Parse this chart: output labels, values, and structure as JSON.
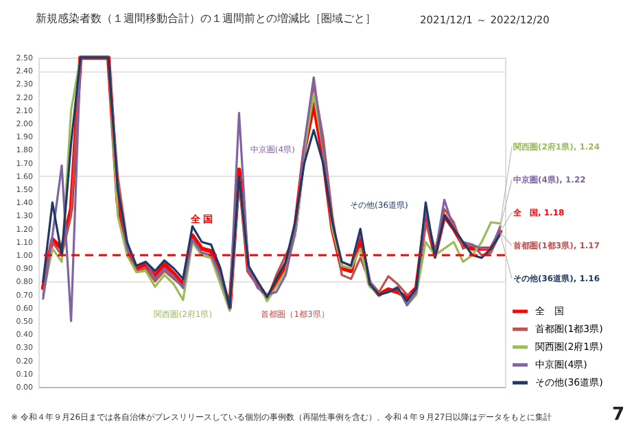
{
  "chart_data": {
    "type": "line",
    "title": "新規感染者数（１週間移動合計）の１週間前との増減比［圏域ごと］",
    "subtitle": "2021/12/1 ～ 2022/12/20",
    "categories": [
      null,
      null,
      null,
      null,
      null,
      null,
      null,
      null,
      null,
      null,
      null,
      null,
      null,
      null,
      null,
      null,
      null,
      null,
      null,
      null,
      null,
      null,
      null,
      null,
      null,
      null,
      null,
      null,
      null,
      null,
      null,
      null,
      null,
      null,
      null,
      null,
      null,
      null,
      null,
      null,
      null,
      null,
      null,
      null,
      null,
      null,
      null,
      null,
      null,
      null
    ],
    "series": [
      {
        "name": "全　国",
        "color": "#ff0000",
        "values": [
          0.75,
          1.12,
          1.05,
          1.35,
          2.5,
          2.5,
          2.5,
          2.5,
          1.4,
          1.05,
          0.9,
          0.93,
          0.84,
          0.93,
          0.86,
          0.78,
          1.15,
          1.05,
          1.03,
          0.85,
          0.6,
          1.65,
          0.88,
          0.78,
          0.68,
          0.78,
          0.92,
          1.2,
          1.8,
          2.15,
          1.75,
          1.2,
          0.9,
          0.88,
          1.12,
          0.78,
          0.7,
          0.74,
          0.72,
          0.68,
          0.75,
          1.3,
          1.0,
          1.3,
          1.2,
          1.08,
          1.05,
          1.05,
          1.05,
          1.18
        ]
      },
      {
        "name": "首都圏(1都3県)",
        "color": "#c0504d",
        "values": [
          0.8,
          1.1,
          1.0,
          1.3,
          2.5,
          2.5,
          2.5,
          2.5,
          1.6,
          1.1,
          0.88,
          0.9,
          0.8,
          0.88,
          0.82,
          0.76,
          1.1,
          1.0,
          0.98,
          0.8,
          0.58,
          1.55,
          0.87,
          0.8,
          0.66,
          0.85,
          1.0,
          1.15,
          1.75,
          2.3,
          1.9,
          1.3,
          0.85,
          0.82,
          0.98,
          0.8,
          0.72,
          0.84,
          0.78,
          0.7,
          0.72,
          1.25,
          1.02,
          1.35,
          1.25,
          1.05,
          1.08,
          1.0,
          1.02,
          1.17
        ]
      },
      {
        "name": "関西圏(2府1県)",
        "color": "#9bbb59",
        "values": [
          0.7,
          1.05,
          0.95,
          2.1,
          2.5,
          2.5,
          2.5,
          2.5,
          1.3,
          1.0,
          0.87,
          0.88,
          0.76,
          0.85,
          0.78,
          0.66,
          1.1,
          1.0,
          0.98,
          0.78,
          0.58,
          1.6,
          0.9,
          0.8,
          0.65,
          0.76,
          0.88,
          1.15,
          1.8,
          2.22,
          1.8,
          1.2,
          0.92,
          0.9,
          1.05,
          0.76,
          0.7,
          0.72,
          0.75,
          0.62,
          0.7,
          1.1,
          1.0,
          1.05,
          1.1,
          0.95,
          1.0,
          1.1,
          1.25,
          1.24
        ]
      },
      {
        "name": "中京圏(4県)",
        "color": "#8064a2",
        "values": [
          0.67,
          1.15,
          1.68,
          0.5,
          2.5,
          2.5,
          2.5,
          2.5,
          1.5,
          1.05,
          0.92,
          0.95,
          0.82,
          0.9,
          0.84,
          0.75,
          1.12,
          1.02,
          1.0,
          0.84,
          0.6,
          2.08,
          0.9,
          0.75,
          0.7,
          0.72,
          0.85,
          1.18,
          1.85,
          2.35,
          1.82,
          1.25,
          0.95,
          0.92,
          1.18,
          0.8,
          0.7,
          0.72,
          0.76,
          0.62,
          0.72,
          1.35,
          1.0,
          1.42,
          1.2,
          1.1,
          1.08,
          1.05,
          1.05,
          1.22
        ]
      },
      {
        "name": "その他(36道県)",
        "color": "#1f3864",
        "values": [
          0.8,
          1.4,
          1.0,
          1.85,
          2.5,
          2.5,
          2.5,
          2.5,
          1.5,
          1.1,
          0.92,
          0.95,
          0.88,
          0.96,
          0.9,
          0.82,
          1.22,
          1.1,
          1.08,
          0.9,
          0.6,
          1.6,
          0.92,
          0.8,
          0.68,
          0.82,
          0.95,
          1.25,
          1.7,
          1.95,
          1.7,
          1.25,
          0.95,
          0.92,
          1.2,
          0.78,
          0.7,
          0.72,
          0.75,
          0.65,
          0.75,
          1.4,
          0.98,
          1.3,
          1.2,
          1.1,
          1.0,
          0.98,
          1.05,
          1.16
        ]
      }
    ],
    "ylim": [
      0,
      2.5
    ],
    "yticks": [
      {
        "value": 0,
        "label": "0.00"
      },
      {
        "value": 0.1,
        "label": "0.10"
      },
      {
        "value": 0.2,
        "label": "0.20"
      },
      {
        "value": 0.3,
        "label": "0.30"
      },
      {
        "value": 0.4,
        "label": "0.40"
      },
      {
        "value": 0.5,
        "label": "0.50"
      },
      {
        "value": 0.6,
        "label": "0.60"
      },
      {
        "value": 0.7,
        "label": "0.70"
      },
      {
        "value": 0.8,
        "label": "0.80"
      },
      {
        "value": 0.9,
        "label": "0.90"
      },
      {
        "value": 1.0,
        "label": "1.00"
      },
      {
        "value": 1.1,
        "label": "1.10"
      },
      {
        "value": 1.2,
        "label": "1.20"
      },
      {
        "value": 1.3,
        "label": "1.30"
      },
      {
        "value": 1.4,
        "label": "1.40"
      },
      {
        "value": 1.5,
        "label": "1.50"
      },
      {
        "value": 1.6,
        "label": "1.60"
      },
      {
        "value": 1.7,
        "label": "1.70"
      },
      {
        "value": 1.8,
        "label": "1.80"
      },
      {
        "value": 1.9,
        "label": "1.90"
      },
      {
        "value": 2.0,
        "label": "2.00"
      },
      {
        "value": 2.1,
        "label": "2.10"
      },
      {
        "value": 2.2,
        "label": "2.20"
      },
      {
        "value": 2.3,
        "label": "2.30"
      },
      {
        "value": 2.4,
        "label": "2.40"
      },
      {
        "value": 2.5,
        "label": "2.50"
      }
    ],
    "ref_lines": [
      {
        "axis": "y",
        "value": 1.0,
        "color": "#ff0000",
        "line_style": "dashed"
      }
    ],
    "annotations": [
      "全 国",
      "中京圏(4県)",
      "関西圏(2府1県)",
      "首都圏（1都3県）",
      "その他(36道県)",
      "関西圏(2府1県), 1.24",
      "中京圏(4県), 1.22",
      "全　国, 1.18",
      "首都圏(1都3県), 1.17",
      "その他(36道県), 1.16",
      "※ 令和４年９月26日までは各自治体がプレスリリースしている個別の事例数（再陽性事例を含む）、令和４年９月27日以降はデータをもとに集計",
      "7"
    ],
    "grid": "y",
    "legend": "bottom right",
    "tick_labels": "y"
  }
}
